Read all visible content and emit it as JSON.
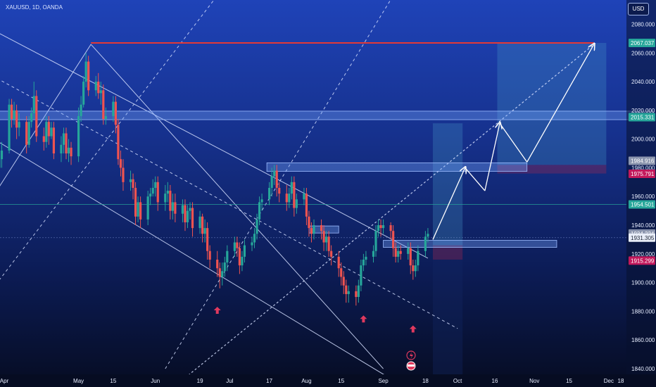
{
  "header": {
    "symbol": "XAUUSD, 1D, OANDA",
    "currency_button": "USD"
  },
  "colors": {
    "bull": "#26a69a",
    "bear": "#ef5350",
    "resistance": "#e53935",
    "zone_fill": "rgba(120,170,255,0.35)",
    "zone_stroke": "#9dbcff",
    "tp_fill": "rgba(70,150,200,0.30)",
    "sl_fill": "rgba(160,40,80,0.35)",
    "arrow": "#ffffff",
    "up_marker": "#e0395e"
  },
  "chart_data": {
    "type": "candlestick",
    "symbol": "XAUUSD",
    "interval": "1D",
    "source": "OANDA",
    "y_axis": {
      "ticks": [
        "2080.000",
        "2060.000",
        "2040.000",
        "2020.000",
        "2000.000",
        "1980.000",
        "1960.000",
        "1940.000",
        "1920.000",
        "1900.000",
        "1880.000",
        "1860.000",
        "1840.000"
      ],
      "range": [
        1828,
        2090
      ]
    },
    "x_axis": {
      "ticks": [
        "Apr",
        "May",
        "15",
        "Jun",
        "19",
        "Jul",
        "17",
        "Aug",
        "15",
        "Sep",
        "18",
        "Oct",
        "16",
        "Nov",
        "15",
        "Dec",
        "18"
      ]
    },
    "price_tags": [
      {
        "label": "2067.037",
        "value": 2067.0,
        "color": "#26a69a"
      },
      {
        "label": "2015.331",
        "value": 2015.3,
        "color": "#26a69a"
      },
      {
        "label": "1984.916",
        "value": 1984.9,
        "color": "#8a94ad"
      },
      {
        "label": "1975.791",
        "value": 1975.8,
        "color": "#c2185b"
      },
      {
        "label": "1954.501",
        "value": 1954.5,
        "color": "#26a69a"
      },
      {
        "label": "1934.224",
        "value": 1934.2,
        "color": "#8a94ad"
      },
      {
        "label": "1931.305",
        "value": 1931.3,
        "color": "#ffffff"
      },
      {
        "label": "1915.299",
        "value": 1915.3,
        "color": "#c2185b"
      }
    ],
    "resistance_level": 2067.0,
    "supply_zones": [
      {
        "from": "Mar 23",
        "to": "Dec 19",
        "top": 2018,
        "bottom": 2015
      },
      {
        "from": "Jul 16",
        "to": "Oct 29",
        "top": 1982,
        "bottom": 1979
      },
      {
        "from": "Aug 02",
        "to": "Aug 14",
        "top": 1938,
        "bottom": 1936
      },
      {
        "from": "Sep 01",
        "to": "Nov 10",
        "top": 1928,
        "bottom": 1926
      }
    ],
    "forecast_boxes": [
      {
        "type": "target",
        "from": "Sep 21",
        "to": "Oct 03",
        "top": 2011,
        "bottom": 1926
      },
      {
        "type": "stop",
        "from": "Sep 21",
        "to": "Oct 03",
        "top": 1926,
        "bottom": 1916
      },
      {
        "type": "target",
        "from": "Oct 17",
        "to": "Nov 30",
        "top": 2067,
        "bottom": 1982
      },
      {
        "type": "stop",
        "from": "Oct 17",
        "to": "Nov 30",
        "top": 1982,
        "bottom": 1976
      }
    ],
    "forecast_path": [
      [
        "Sep 21",
        1930
      ],
      [
        "Oct 04",
        1980
      ],
      [
        "Oct 12",
        1964
      ],
      [
        "Oct 18",
        2011
      ],
      [
        "Oct 29",
        1984
      ],
      [
        "Nov 25",
        2066
      ]
    ],
    "up_markers": [
      {
        "date": "Jun 26",
        "price": 1890
      },
      {
        "date": "Aug 24",
        "price": 1884
      },
      {
        "date": "Sep 13",
        "price": 1877
      }
    ],
    "candles": [
      [
        "Mar 23",
        1958,
        1962,
        1946,
        1968
      ],
      [
        "Mar 24",
        1962,
        1978,
        1956,
        1984
      ],
      [
        "Mar 27",
        1978,
        1970,
        1962,
        1984
      ],
      [
        "Mar 28",
        1970,
        1982,
        1966,
        1988
      ],
      [
        "Mar 29",
        1982,
        1980,
        1974,
        1986
      ],
      [
        "Mar 30",
        1980,
        1986,
        1976,
        1990
      ],
      [
        "Mar 31",
        1986,
        1992,
        1980,
        1998
      ],
      [
        "Apr 03",
        1992,
        2024,
        1990,
        2028
      ],
      [
        "Apr 04",
        2024,
        2014,
        2008,
        2028
      ],
      [
        "Apr 05",
        2014,
        2020,
        2010,
        2026
      ],
      [
        "Apr 06",
        2020,
        2008,
        2000,
        2024
      ],
      [
        "Apr 07",
        2008,
        2012,
        2002,
        2018
      ],
      [
        "Apr 10",
        2012,
        1996,
        1990,
        2016
      ],
      [
        "Apr 11",
        1996,
        2012,
        1994,
        2016
      ],
      [
        "Apr 12",
        2012,
        2018,
        2008,
        2022
      ],
      [
        "Apr 13",
        2018,
        2030,
        2014,
        2040
      ],
      [
        "Apr 14",
        2030,
        2002,
        1998,
        2034
      ],
      [
        "Apr 17",
        2002,
        1998,
        1992,
        2008
      ],
      [
        "Apr 18",
        1998,
        2012,
        1994,
        2016
      ],
      [
        "Apr 19",
        2012,
        2002,
        1996,
        2016
      ],
      [
        "Apr 20",
        2002,
        2008,
        2000,
        2012
      ],
      [
        "Apr 21",
        2008,
        1990,
        1986,
        2012
      ],
      [
        "Apr 24",
        1990,
        1996,
        1984,
        2002
      ],
      [
        "Apr 25",
        1996,
        2004,
        1990,
        2008
      ],
      [
        "Apr 26",
        2004,
        1990,
        1986,
        2008
      ],
      [
        "Apr 27",
        1990,
        1994,
        1984,
        2000
      ],
      [
        "Apr 28",
        1994,
        1988,
        1982,
        1998
      ],
      [
        "May 01",
        1988,
        2016,
        1984,
        2022
      ],
      [
        "May 02",
        2016,
        2024,
        2012,
        2030
      ],
      [
        "May 03",
        2024,
        2040,
        2022,
        2044
      ],
      [
        "May 04",
        2040,
        2054,
        2036,
        2060
      ],
      [
        "May 05",
        2054,
        2034,
        2030,
        2058
      ],
      [
        "May 08",
        2034,
        2040,
        2030,
        2044
      ],
      [
        "May 09",
        2040,
        2032,
        2028,
        2046
      ],
      [
        "May 10",
        2032,
        2034,
        2024,
        2040
      ],
      [
        "May 11",
        2034,
        2014,
        2010,
        2038
      ],
      [
        "May 12",
        2014,
        2016,
        2010,
        2022
      ],
      [
        "May 15",
        2016,
        2026,
        2012,
        2030
      ],
      [
        "May 16",
        2026,
        2010,
        2004,
        2030
      ],
      [
        "May 17",
        2010,
        1986,
        1982,
        2014
      ],
      [
        "May 18",
        1986,
        1980,
        1974,
        1992
      ],
      [
        "May 19",
        1980,
        1970,
        1964,
        1986
      ],
      [
        "May 22",
        1970,
        1972,
        1964,
        1978
      ],
      [
        "May 23",
        1972,
        1966,
        1958,
        1976
      ],
      [
        "May 24",
        1966,
        1946,
        1940,
        1970
      ],
      [
        "May 25",
        1946,
        1956,
        1942,
        1960
      ],
      [
        "May 26",
        1956,
        1944,
        1938,
        1960
      ],
      [
        "May 29",
        1944,
        1960,
        1940,
        1964
      ],
      [
        "May 30",
        1960,
        1962,
        1954,
        1966
      ],
      [
        "May 31",
        1962,
        1966,
        1960,
        1972
      ],
      [
        "Jun 01",
        1966,
        1970,
        1960,
        1974
      ],
      [
        "Jun 02",
        1970,
        1956,
        1950,
        1974
      ],
      [
        "Jun 05",
        1956,
        1962,
        1950,
        1968
      ],
      [
        "Jun 06",
        1962,
        1964,
        1956,
        1970
      ],
      [
        "Jun 07",
        1964,
        1950,
        1944,
        1968
      ],
      [
        "Jun 08",
        1950,
        1956,
        1944,
        1962
      ],
      [
        "Jun 09",
        1956,
        1948,
        1942,
        1962
      ],
      [
        "Jun 12",
        1948,
        1954,
        1942,
        1958
      ],
      [
        "Jun 13",
        1954,
        1942,
        1936,
        1958
      ],
      [
        "Jun 14",
        1942,
        1950,
        1938,
        1954
      ],
      [
        "Jun 15",
        1950,
        1952,
        1944,
        1956
      ],
      [
        "Jun 16",
        1952,
        1938,
        1932,
        1956
      ],
      [
        "Jun 19",
        1938,
        1946,
        1934,
        1950
      ],
      [
        "Jun 20",
        1946,
        1934,
        1928,
        1948
      ],
      [
        "Jun 21",
        1934,
        1938,
        1928,
        1944
      ],
      [
        "Jun 22",
        1938,
        1922,
        1916,
        1942
      ],
      [
        "Jun 23",
        1922,
        1916,
        1910,
        1926
      ],
      [
        "Jun 26",
        1916,
        1910,
        1904,
        1922
      ],
      [
        "Jun 27",
        1910,
        1904,
        1896,
        1914
      ],
      [
        "Jun 28",
        1904,
        1908,
        1898,
        1914
      ],
      [
        "Jun 29",
        1908,
        1914,
        1904,
        1918
      ],
      [
        "Jun 30",
        1914,
        1922,
        1908,
        1926
      ],
      [
        "Jul 03",
        1922,
        1928,
        1918,
        1932
      ],
      [
        "Jul 04",
        1928,
        1924,
        1918,
        1932
      ],
      [
        "Jul 05",
        1924,
        1912,
        1906,
        1928
      ],
      [
        "Jul 06",
        1912,
        1918,
        1908,
        1922
      ],
      [
        "Jul 07",
        1918,
        1926,
        1914,
        1930
      ],
      [
        "Jul 10",
        1926,
        1928,
        1922,
        1932
      ],
      [
        "Jul 11",
        1928,
        1934,
        1924,
        1938
      ],
      [
        "Jul 12",
        1934,
        1944,
        1930,
        1948
      ],
      [
        "Jul 13",
        1944,
        1956,
        1940,
        1960
      ],
      [
        "Jul 14",
        1956,
        1958,
        1950,
        1962
      ],
      [
        "Jul 17",
        1958,
        1966,
        1954,
        1970
      ],
      [
        "Jul 18",
        1966,
        1974,
        1960,
        1980
      ],
      [
        "Jul 19",
        1974,
        1978,
        1968,
        1982
      ],
      [
        "Jul 20",
        1978,
        1966,
        1960,
        1982
      ],
      [
        "Jul 21",
        1966,
        1962,
        1956,
        1970
      ],
      [
        "Jul 24",
        1962,
        1956,
        1950,
        1968
      ],
      [
        "Jul 25",
        1956,
        1962,
        1952,
        1966
      ],
      [
        "Jul 26",
        1962,
        1970,
        1958,
        1974
      ],
      [
        "Jul 27",
        1970,
        1952,
        1946,
        1974
      ],
      [
        "Jul 28",
        1952,
        1958,
        1948,
        1962
      ],
      [
        "Jul 31",
        1958,
        1962,
        1954,
        1966
      ],
      [
        "Aug 01",
        1962,
        1946,
        1940,
        1966
      ],
      [
        "Aug 02",
        1946,
        1938,
        1932,
        1950
      ],
      [
        "Aug 03",
        1938,
        1934,
        1928,
        1942
      ],
      [
        "Aug 04",
        1934,
        1940,
        1930,
        1944
      ],
      [
        "Aug 07",
        1940,
        1936,
        1930,
        1944
      ],
      [
        "Aug 08",
        1936,
        1928,
        1922,
        1940
      ],
      [
        "Aug 09",
        1928,
        1932,
        1922,
        1936
      ],
      [
        "Aug 10",
        1932,
        1922,
        1918,
        1936
      ],
      [
        "Aug 11",
        1922,
        1918,
        1912,
        1926
      ],
      [
        "Aug 14",
        1918,
        1910,
        1904,
        1922
      ],
      [
        "Aug 15",
        1910,
        1904,
        1898,
        1914
      ],
      [
        "Aug 16",
        1904,
        1898,
        1892,
        1908
      ],
      [
        "Aug 17",
        1898,
        1892,
        1886,
        1902
      ],
      [
        "Aug 18",
        1892,
        1894,
        1886,
        1898
      ],
      [
        "Aug 21",
        1894,
        1890,
        1884,
        1898
      ],
      [
        "Aug 22",
        1890,
        1898,
        1886,
        1902
      ],
      [
        "Aug 23",
        1898,
        1912,
        1894,
        1916
      ],
      [
        "Aug 24",
        1912,
        1916,
        1908,
        1920
      ],
      [
        "Aug 25",
        1916,
        1918,
        1912,
        1922
      ],
      [
        "Aug 28",
        1918,
        1922,
        1914,
        1926
      ],
      [
        "Aug 29",
        1922,
        1936,
        1918,
        1940
      ],
      [
        "Aug 30",
        1936,
        1940,
        1932,
        1944
      ],
      [
        "Aug 31",
        1940,
        1938,
        1932,
        1944
      ],
      [
        "Sep 01",
        1938,
        1940,
        1934,
        1944
      ],
      [
        "Sep 04",
        1940,
        1936,
        1930,
        1942
      ],
      [
        "Sep 05",
        1936,
        1924,
        1918,
        1940
      ],
      [
        "Sep 06",
        1924,
        1918,
        1914,
        1928
      ],
      [
        "Sep 07",
        1918,
        1922,
        1914,
        1926
      ],
      [
        "Sep 08",
        1922,
        1920,
        1916,
        1926
      ],
      [
        "Sep 11",
        1920,
        1924,
        1916,
        1928
      ],
      [
        "Sep 12",
        1924,
        1912,
        1906,
        1928
      ],
      [
        "Sep 13",
        1912,
        1908,
        1902,
        1916
      ],
      [
        "Sep 14",
        1908,
        1912,
        1904,
        1916
      ],
      [
        "Sep 15",
        1912,
        1922,
        1908,
        1926
      ],
      [
        "Sep 18",
        1922,
        1932,
        1918,
        1936
      ],
      [
        "Sep 19",
        1932,
        1934,
        1928,
        1938
      ]
    ]
  }
}
